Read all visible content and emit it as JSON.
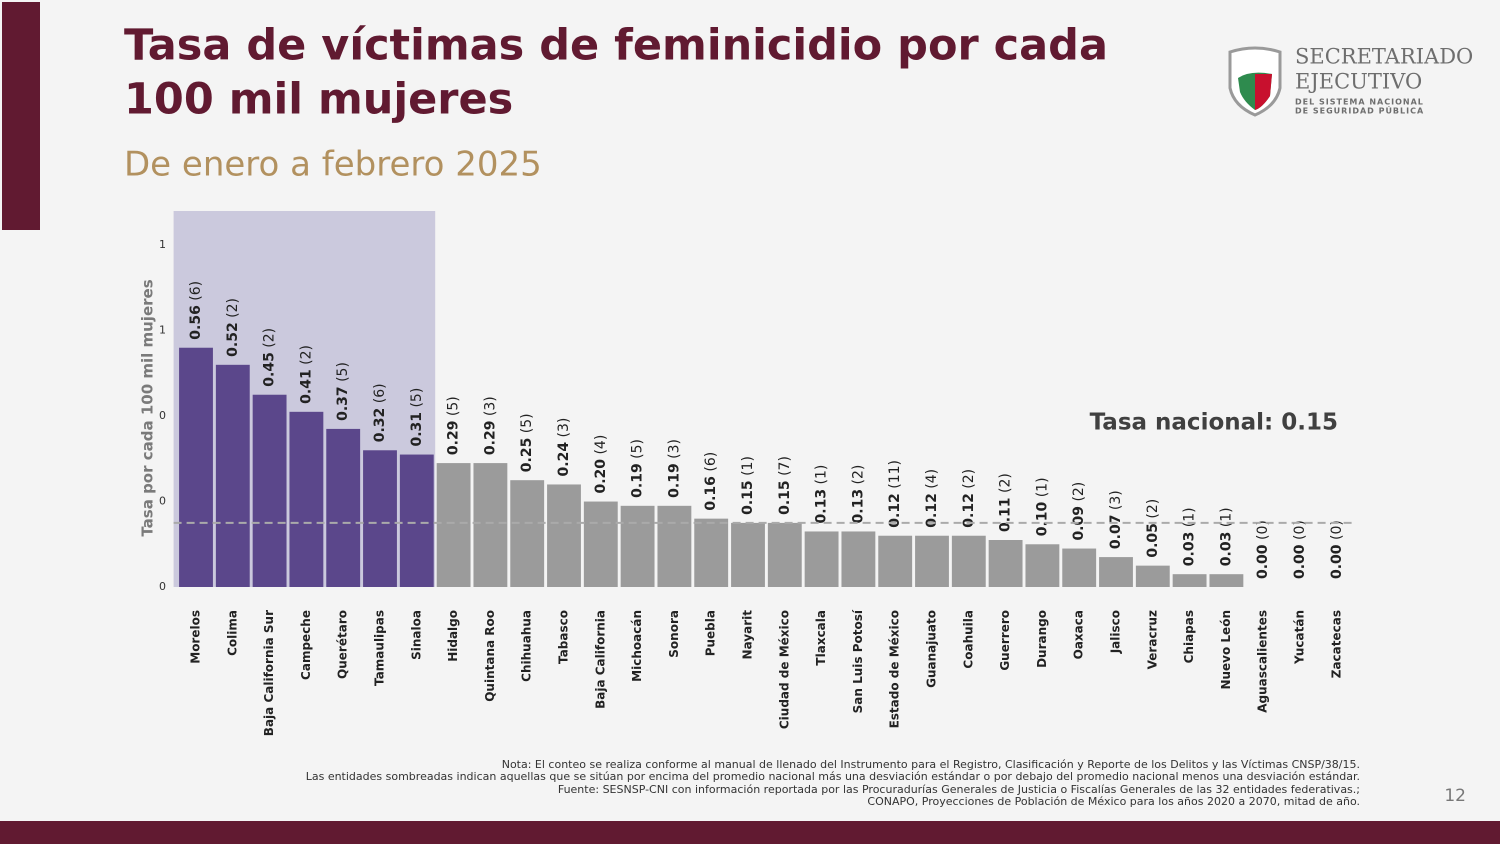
{
  "header": {
    "title": [
      "Tasa de víctimas de feminicidio por cada",
      "100 mil mujeres"
    ],
    "subtitle": "De enero a febrero 2025"
  },
  "logo": {
    "line1": "SECRETARIADO",
    "line2": "EJECUTIVO",
    "line3": "DEL SISTEMA NACIONAL",
    "line4": "DE SEGURIDAD PÚBLICA"
  },
  "chart_data": {
    "type": "bar",
    "ylabel": "Tasa por cada 100 mil mujeres",
    "categories": [
      "Morelos",
      "Colima",
      "Baja California Sur",
      "Campeche",
      "Querétaro",
      "Tamaulipas",
      "Sinaloa",
      "Hidalgo",
      "Quintana Roo",
      "Chihuahua",
      "Tabasco",
      "Baja California",
      "Michoacán",
      "Sonora",
      "Puebla",
      "Nayarit",
      "Ciudad de México",
      "Tlaxcala",
      "San Luis Potosí",
      "Estado de México",
      "Guanajuato",
      "Coahuila",
      "Guerrero",
      "Durango",
      "Oaxaca",
      "Jalisco",
      "Veracruz",
      "Chiapas",
      "Nuevo León",
      "Aguascalientes",
      "Yucatán",
      "Zacatecas"
    ],
    "values": [
      0.56,
      0.52,
      0.45,
      0.41,
      0.37,
      0.32,
      0.31,
      0.29,
      0.29,
      0.25,
      0.24,
      0.2,
      0.19,
      0.19,
      0.16,
      0.15,
      0.15,
      0.13,
      0.13,
      0.12,
      0.12,
      0.12,
      0.11,
      0.1,
      0.09,
      0.07,
      0.05,
      0.03,
      0.03,
      0.0,
      0.0,
      0.0
    ],
    "value_labels": [
      "0.56",
      "0.52",
      "0.45",
      "0.41",
      "0.37",
      "0.32",
      "0.31",
      "0.29",
      "0.29",
      "0.25",
      "0.24",
      "0.20",
      "0.19",
      "0.19",
      "0.16",
      "0.15",
      "0.15",
      "0.13",
      "0.13",
      "0.12",
      "0.12",
      "0.12",
      "0.11",
      "0.10",
      "0.09",
      "0.07",
      "0.05",
      "0.03",
      "0.03",
      "0.00",
      "0.00",
      "0.00"
    ],
    "count_labels": [
      "(6)",
      "(2)",
      "(2)",
      "(2)",
      "(5)",
      "(6)",
      "(5)",
      "(5)",
      "(3)",
      "(5)",
      "(3)",
      "(4)",
      "(5)",
      "(3)",
      "(6)",
      "(1)",
      "(7)",
      "(1)",
      "(2)",
      "(11)",
      "(4)",
      "(2)",
      "(2)",
      "(1)",
      "(2)",
      "(3)",
      "(2)",
      "(1)",
      "(1)",
      "(0)",
      "(0)",
      "(0)"
    ],
    "colors": [
      "#5b478b",
      "#5b478b",
      "#5b478b",
      "#5b478b",
      "#5b478b",
      "#5b478b",
      "#5b478b",
      "#9b9b9b",
      "#9b9b9b",
      "#9b9b9b",
      "#9b9b9b",
      "#9b9b9b",
      "#9b9b9b",
      "#9b9b9b",
      "#9b9b9b",
      "#9b9b9b",
      "#9b9b9b",
      "#9b9b9b",
      "#9b9b9b",
      "#9b9b9b",
      "#9b9b9b",
      "#9b9b9b",
      "#9b9b9b",
      "#9b9b9b",
      "#9b9b9b",
      "#9b9b9b",
      "#9b9b9b",
      "#9b9b9b",
      "#9b9b9b",
      "#9b9b9b",
      "#9b9b9b",
      "#9b9b9b"
    ],
    "shade_color": "#cbc9dd",
    "ylim": [
      0,
      0.88
    ],
    "yticks": [
      0,
      {
        "value": 0.2,
        "label": "0"
      },
      {
        "value": 0.4,
        "label": "0"
      },
      {
        "value": 0.6,
        "label": "1"
      },
      {
        "value": 0.8,
        "label": "1"
      }
    ],
    "reference_line": 0.15,
    "annotation": "Tasa nacional: 0.15"
  },
  "notes": [
    "Nota: El conteo se realiza conforme al manual de llenado del Instrumento para el Registro, Clasificación y Reporte de los Delitos y las Víctimas CNSP/38/15.",
    "Las entidades sombreadas indican aquellas que se sitúan por encima del promedio nacional más una desviación estándar o por debajo del promedio nacional menos una desviación estándar.",
    "Fuente: SESNSP-CNI con información reportada por las Procuradurías Generales de Justicia o Fiscalías Generales de las 32 entidades federativas.;",
    "CONAPO, Proyecciones de Población de México para los años 2020 a 2070, mitad de año."
  ],
  "page_number": 12
}
